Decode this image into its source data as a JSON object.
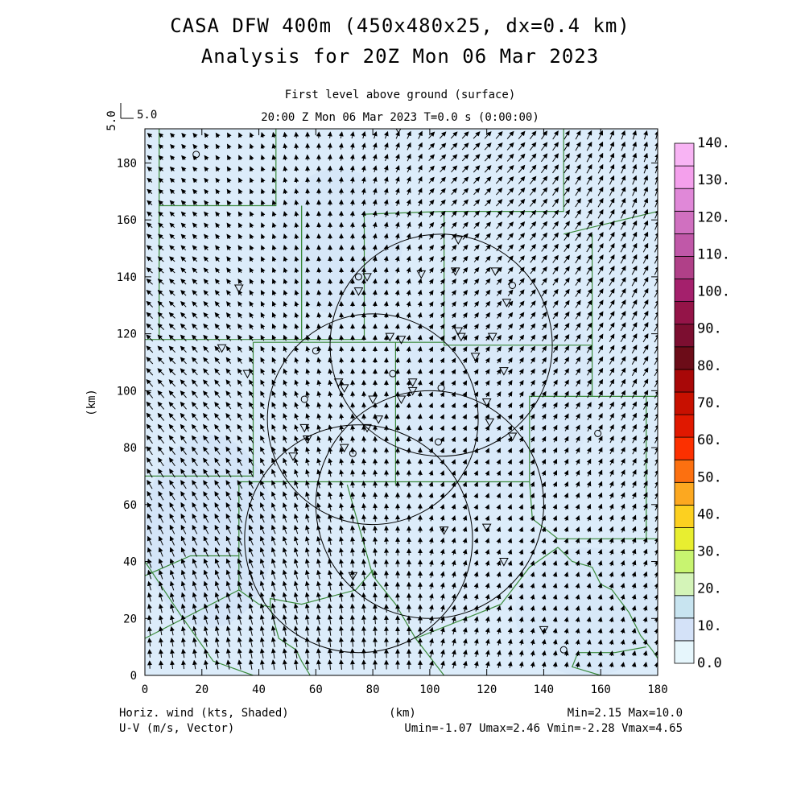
{
  "header": {
    "title": "CASA DFW 400m (450x480x25, dx=0.4 km)",
    "subtitle": "Analysis for 20Z Mon 06 Mar 2023",
    "level": "First level above ground (surface)",
    "time": "20:00 Z Mon 06 Mar 2023    T=0.0 s (0:00:00)"
  },
  "vector_ref": {
    "rotated_label": "5.0",
    "label": "5.0"
  },
  "footer": {
    "left1": "Horiz. wind (kts, Shaded)",
    "left2": "U-V (m/s, Vector)",
    "center": "(km)",
    "right1": "Min=2.15 Max=10.0",
    "right2": "Umin=-1.07 Umax=2.46 Vmin=-2.28 Vmax=4.65"
  },
  "colors": {
    "field_light": "#dcecfa",
    "field_mid": "#d0e2f5",
    "county": "#3a8a3a"
  },
  "chart_data": {
    "type": "heatmap",
    "title": "CASA DFW 400m (450x480x25, dx=0.4 km)",
    "xlabel": "(km)",
    "ylabel": "(km)",
    "xlim": [
      0,
      180
    ],
    "ylim": [
      0,
      192
    ],
    "x_ticks": [
      0,
      20,
      40,
      60,
      80,
      100,
      120,
      140,
      160,
      180
    ],
    "y_ticks": [
      0,
      20,
      40,
      60,
      80,
      100,
      120,
      140,
      160,
      180
    ],
    "colorbar": {
      "labels": [
        "0.0",
        "10.",
        "20.",
        "30.",
        "40.",
        "50.",
        "60.",
        "70.",
        "80.",
        "90.",
        "100.",
        "110.",
        "120.",
        "130.",
        "140."
      ],
      "colors": [
        "#e6f6fc",
        "#d4e2f8",
        "#c8e4f0",
        "#d4f4b8",
        "#c8f470",
        "#e8ee30",
        "#fcd020",
        "#fca820",
        "#fc7010",
        "#fc3000",
        "#e01800",
        "#c81000",
        "#a80808",
        "#6c0c18",
        "#7c0e30",
        "#941448",
        "#a4206c",
        "#b04088",
        "#c058a8",
        "#d070c0",
        "#e088d8",
        "#f4a0ec",
        "#f8b4f4"
      ]
    },
    "radars": [
      {
        "x": 80,
        "y": 90,
        "r": 37
      },
      {
        "x": 75,
        "y": 48,
        "r": 40
      },
      {
        "x": 100,
        "y": 60,
        "r": 40
      },
      {
        "x": 104,
        "y": 116,
        "r": 39
      }
    ],
    "stations_tri": [
      [
        33,
        136
      ],
      [
        27,
        115
      ],
      [
        36,
        106
      ],
      [
        68,
        103
      ],
      [
        70,
        101
      ],
      [
        80,
        97
      ],
      [
        82,
        90
      ],
      [
        78,
        87
      ],
      [
        70,
        80
      ],
      [
        56,
        87
      ],
      [
        57,
        83
      ],
      [
        52,
        77
      ],
      [
        75,
        135
      ],
      [
        78,
        140
      ],
      [
        97,
        141
      ],
      [
        110,
        153
      ],
      [
        109,
        142
      ],
      [
        123,
        142
      ],
      [
        127,
        131
      ],
      [
        86,
        119
      ],
      [
        90,
        118
      ],
      [
        110,
        121
      ],
      [
        111,
        119
      ],
      [
        116,
        112
      ],
      [
        122,
        119
      ],
      [
        126,
        107
      ],
      [
        120,
        96
      ],
      [
        121,
        89
      ],
      [
        129,
        84
      ],
      [
        94,
        103
      ],
      [
        94,
        100
      ],
      [
        90,
        97
      ],
      [
        105,
        51
      ],
      [
        120,
        52
      ],
      [
        126,
        40
      ],
      [
        73,
        35
      ],
      [
        140,
        16
      ],
      [
        89,
        192
      ]
    ],
    "stations_circ": [
      [
        18,
        183
      ],
      [
        60,
        114
      ],
      [
        56,
        97
      ],
      [
        75,
        140
      ],
      [
        129,
        137
      ],
      [
        87,
        106
      ],
      [
        104,
        101
      ],
      [
        103,
        82
      ],
      [
        73,
        78
      ],
      [
        159,
        85
      ],
      [
        147,
        9
      ]
    ],
    "stats": {
      "min": 2.15,
      "max": 10.0,
      "umin": -1.07,
      "umax": 2.46,
      "vmin": -2.28,
      "vmax": 4.65
    }
  }
}
